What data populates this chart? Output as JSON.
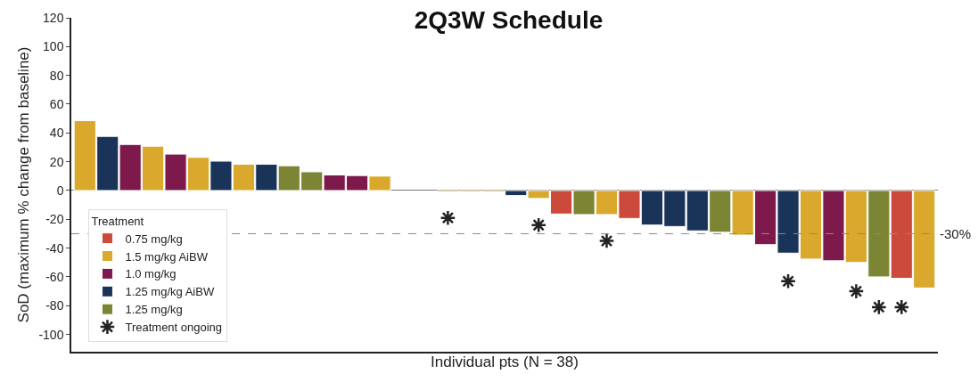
{
  "chart_data": {
    "type": "bar",
    "stacked": true,
    "title": "2Q3W Schedule",
    "ylabel": "SoD (maximum % change from baseline)",
    "xlabel": "Individual pts (N = 38)",
    "legend_title": "Treatment",
    "legend": "bottom left",
    "categories": [
      null,
      null,
      null,
      null,
      null,
      null,
      null,
      null,
      null,
      null,
      null,
      null,
      null,
      null,
      null,
      null,
      null,
      null,
      null,
      null,
      null,
      null,
      null,
      null,
      null,
      null,
      null,
      null,
      null,
      null,
      null,
      null,
      null,
      null,
      null,
      null,
      null,
      null
    ],
    "ylim": [
      -112,
      120
    ],
    "yticks": [
      -100,
      -80,
      -60,
      -40,
      -20,
      0,
      20,
      40,
      60,
      80,
      100,
      120
    ],
    "series": [
      {
        "name": "0.75 mg/kg",
        "color": "#cc4a3c",
        "values": [
          null,
          null,
          null,
          null,
          null,
          null,
          null,
          null,
          null,
          null,
          null,
          null,
          null,
          null,
          null,
          null,
          null,
          null,
          null,
          null,
          null,
          -16.3,
          null,
          null,
          -19.4,
          null,
          null,
          null,
          null,
          null,
          null,
          null,
          null,
          null,
          null,
          null,
          -61,
          null
        ]
      },
      {
        "name": "1.5 mg/kg AiBW",
        "color": "#d9a82c",
        "values": [
          48.6,
          null,
          null,
          30.8,
          null,
          23,
          null,
          18.3,
          null,
          null,
          null,
          null,
          null,
          10,
          null,
          null,
          -1,
          -1,
          -1,
          null,
          -5.5,
          null,
          null,
          -16.7,
          null,
          null,
          null,
          null,
          null,
          -31,
          null,
          null,
          -47.6,
          null,
          -50,
          null,
          null,
          -67.7
        ]
      },
      {
        "name": "1.0 mg/kg",
        "color": "#7e1a4b",
        "values": [
          null,
          null,
          32,
          null,
          25.3,
          null,
          null,
          null,
          null,
          null,
          null,
          10.8,
          10.4,
          null,
          null,
          null,
          null,
          null,
          null,
          null,
          null,
          null,
          null,
          null,
          null,
          null,
          null,
          null,
          null,
          null,
          -37.6,
          null,
          null,
          -48.8,
          null,
          null,
          null,
          null
        ]
      },
      {
        "name": "1.25 mg/kg AiBW",
        "color": "#1a3358",
        "values": [
          null,
          37.6,
          null,
          null,
          null,
          null,
          20.4,
          null,
          18.3,
          null,
          null,
          null,
          null,
          null,
          null,
          null,
          null,
          null,
          null,
          -3.5,
          null,
          null,
          null,
          null,
          null,
          -24,
          -25,
          -28,
          null,
          null,
          null,
          -43.5,
          null,
          null,
          null,
          null,
          null,
          null
        ]
      },
      {
        "name": "1.25 mg/kg",
        "color": "#7b8534",
        "values": [
          null,
          null,
          null,
          null,
          null,
          null,
          null,
          null,
          null,
          17.2,
          13,
          null,
          null,
          null,
          null,
          null,
          null,
          null,
          null,
          null,
          null,
          null,
          -16.7,
          null,
          null,
          null,
          null,
          null,
          -29,
          null,
          null,
          null,
          null,
          null,
          null,
          -60,
          null,
          null
        ]
      },
      {
        "name": "Treatment ongoing",
        "type": "scatter",
        "marker": "cross",
        "color": "#222222",
        "values": [
          null,
          null,
          null,
          null,
          null,
          null,
          null,
          null,
          null,
          null,
          null,
          null,
          null,
          null,
          null,
          null,
          -19,
          null,
          null,
          null,
          -24,
          null,
          null,
          -35,
          null,
          null,
          null,
          null,
          null,
          null,
          null,
          -63,
          null,
          null,
          -70,
          -81,
          -81,
          null
        ]
      }
    ],
    "ref_lines": [
      {
        "axis": "y",
        "value": -30,
        "label": "-30%",
        "color": "#888888",
        "line_style": "dashed"
      }
    ]
  }
}
